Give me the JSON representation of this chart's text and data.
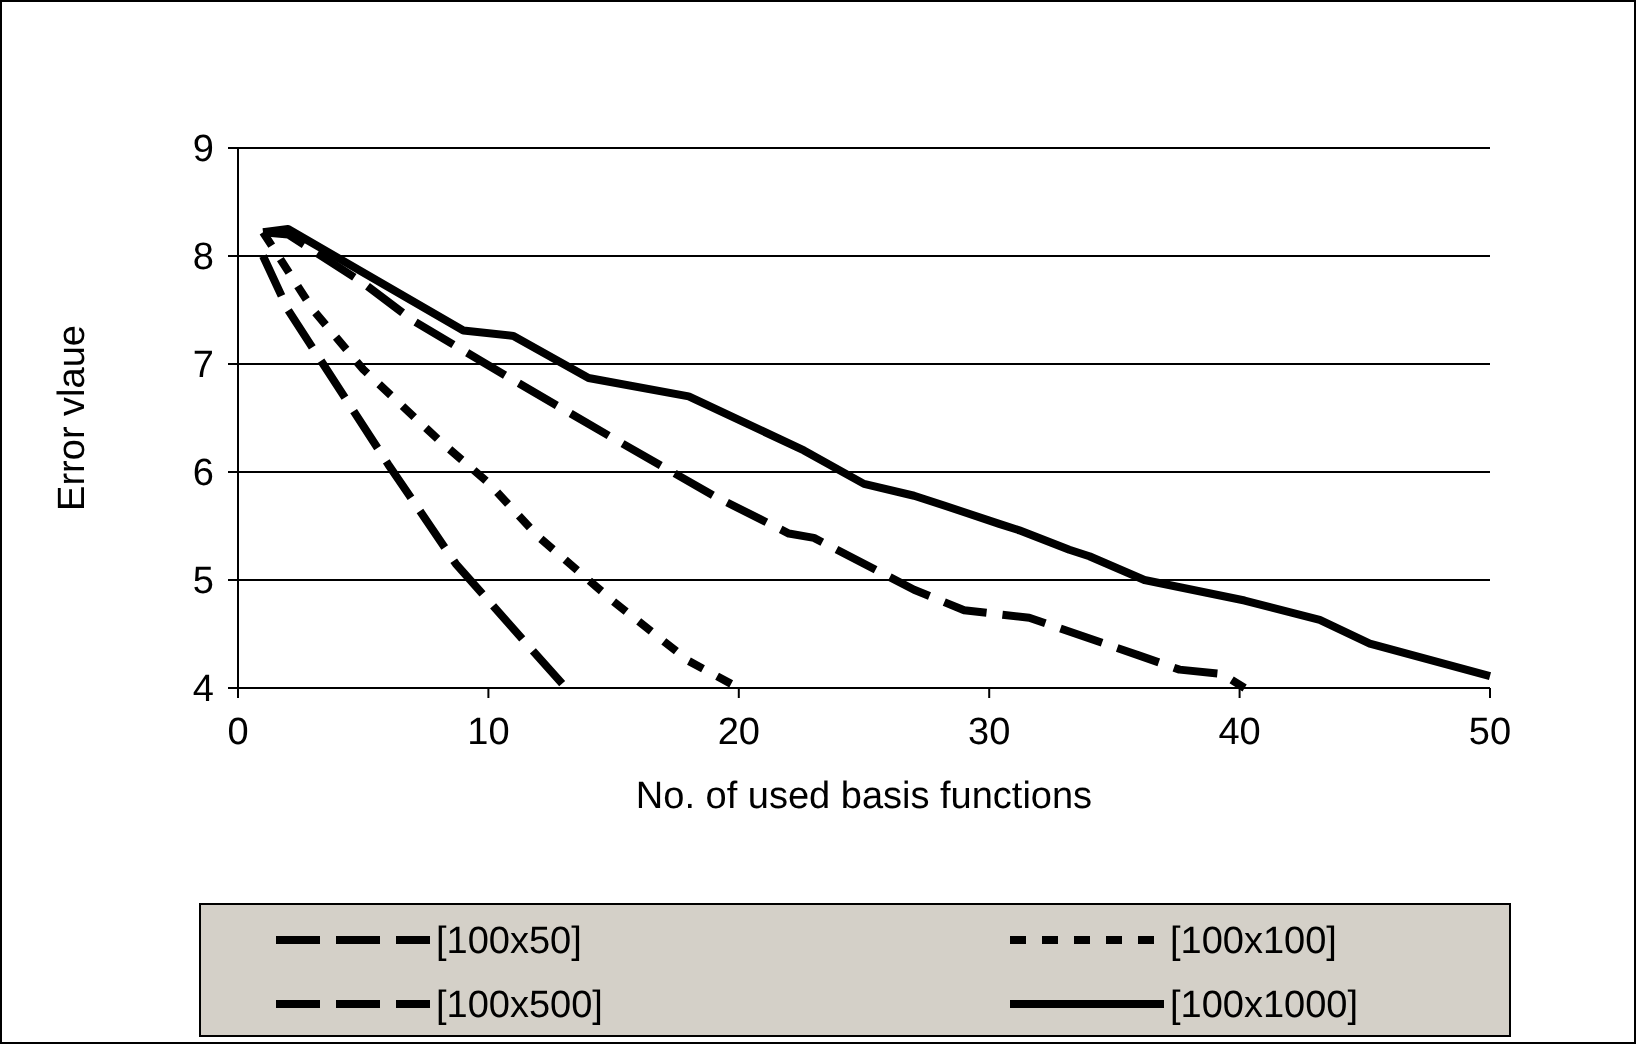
{
  "chart_data": {
    "type": "line",
    "xlabel": "No. of used basis functions",
    "ylabel": "Error vlaue",
    "xlim": [
      0,
      50
    ],
    "xticks": [
      0,
      10,
      20,
      30,
      40,
      50
    ],
    "ylim": [
      4,
      9
    ],
    "yticks": [
      4,
      5,
      6,
      7,
      8,
      9
    ],
    "grid": "y",
    "legend": "bottom",
    "series": [
      {
        "name": "[100x50]",
        "color": "#000000",
        "line_style": "dashed",
        "x": [
          1,
          2,
          6,
          8.7,
          11.6,
          13.1
        ],
        "values": [
          8.0,
          7.5,
          6.07,
          5.15,
          4.39,
          4.0
        ]
      },
      {
        "name": "[100x100]",
        "color": "#000000",
        "line_style": "dotted",
        "x": [
          1,
          3,
          5,
          8,
          10,
          12,
          15,
          18,
          20
        ],
        "values": [
          8.22,
          7.5,
          6.95,
          6.3,
          5.9,
          5.4,
          4.8,
          4.25,
          4.0
        ]
      },
      {
        "name": "[100x500]",
        "color": "#000000",
        "line_style": "dashed",
        "x": [
          1,
          2,
          5,
          7,
          11,
          15,
          19,
          22,
          23,
          27,
          29,
          31.6,
          36,
          37.6,
          39.3,
          40.2
        ],
        "values": [
          8.22,
          8.2,
          7.75,
          7.4,
          6.85,
          6.31,
          5.78,
          5.43,
          5.39,
          4.91,
          4.72,
          4.65,
          4.3,
          4.17,
          4.13,
          4.0
        ]
      },
      {
        "name": "[100x1000]",
        "color": "#000000",
        "line_style": "solid",
        "x": [
          1,
          2,
          9,
          11,
          14,
          18,
          22.6,
          25,
          27,
          28.2,
          29.1,
          30.4,
          31.2,
          33.2,
          34,
          36.2,
          40.2,
          43.2,
          45.2,
          50
        ],
        "values": [
          8.22,
          8.25,
          7.31,
          7.26,
          6.87,
          6.7,
          6.2,
          5.89,
          5.78,
          5.69,
          5.62,
          5.52,
          5.46,
          5.28,
          5.22,
          5.0,
          4.81,
          4.63,
          4.41,
          4.11
        ]
      }
    ]
  }
}
